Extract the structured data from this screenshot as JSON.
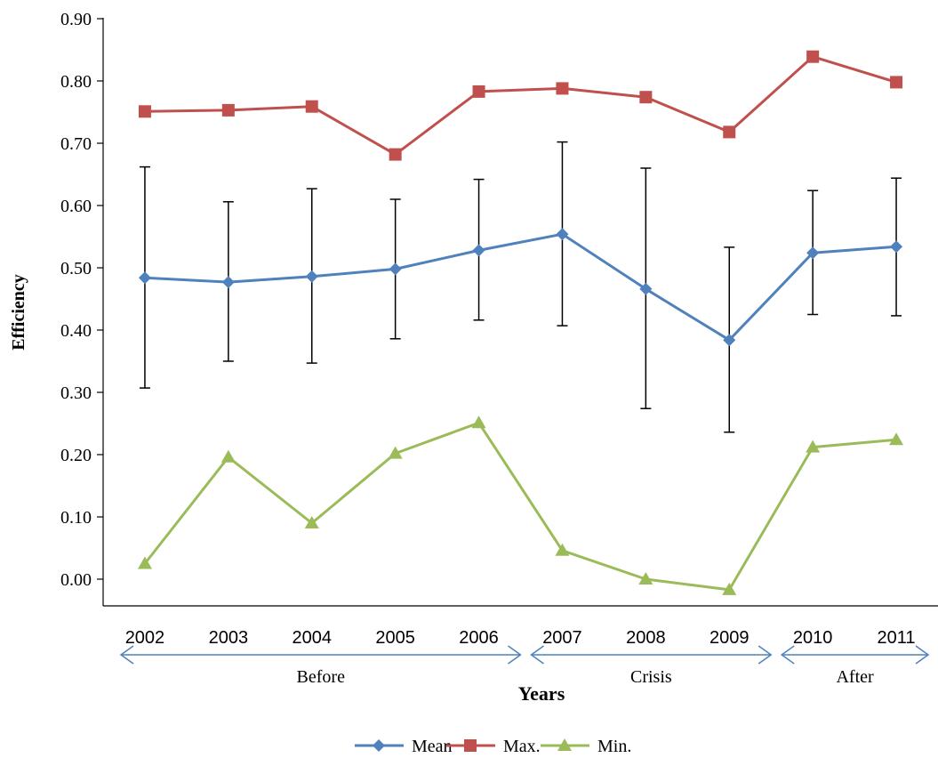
{
  "chart_data": {
    "type": "line",
    "title": "",
    "xlabel": "Years",
    "ylabel": "Efficiency",
    "categories": [
      "2002",
      "2003",
      "2004",
      "2005",
      "2006",
      "2007",
      "2008",
      "2009",
      "2010",
      "2011"
    ],
    "ylim": [
      0,
      0.9
    ],
    "y_ticks": [
      "0.00",
      "0.10",
      "0.20",
      "0.30",
      "0.40",
      "0.50",
      "0.60",
      "0.70",
      "0.80",
      "0.90"
    ],
    "grid": false,
    "legend_position": "bottom",
    "series": [
      {
        "name": "Mean",
        "color": "#4f81bd",
        "marker": "diamond",
        "values": [
          0.484,
          0.477,
          0.486,
          0.498,
          0.528,
          0.554,
          0.466,
          0.384,
          0.524,
          0.534
        ],
        "error_high": [
          0.662,
          0.606,
          0.627,
          0.61,
          0.642,
          0.702,
          0.66,
          0.533,
          0.624,
          0.644
        ],
        "error_low": [
          0.307,
          0.35,
          0.347,
          0.386,
          0.416,
          0.407,
          0.274,
          0.236,
          0.425,
          0.423
        ]
      },
      {
        "name": "Max.",
        "color": "#c0504d",
        "marker": "square",
        "values": [
          0.751,
          0.753,
          0.759,
          0.682,
          0.783,
          0.788,
          0.774,
          0.718,
          0.839,
          0.798
        ]
      },
      {
        "name": "Min.",
        "color": "#9bbb59",
        "marker": "triangle",
        "values": [
          0.025,
          0.196,
          0.09,
          0.202,
          0.251,
          0.046,
          0.0,
          -0.017,
          0.212,
          0.224
        ]
      }
    ],
    "periods": [
      {
        "label": "Before",
        "from": "2002",
        "to": "2006"
      },
      {
        "label": "Crisis",
        "from": "2007",
        "to": "2009"
      },
      {
        "label": "After",
        "from": "2010",
        "to": "2011"
      }
    ],
    "period_arrow_color": "#4f81bd"
  }
}
